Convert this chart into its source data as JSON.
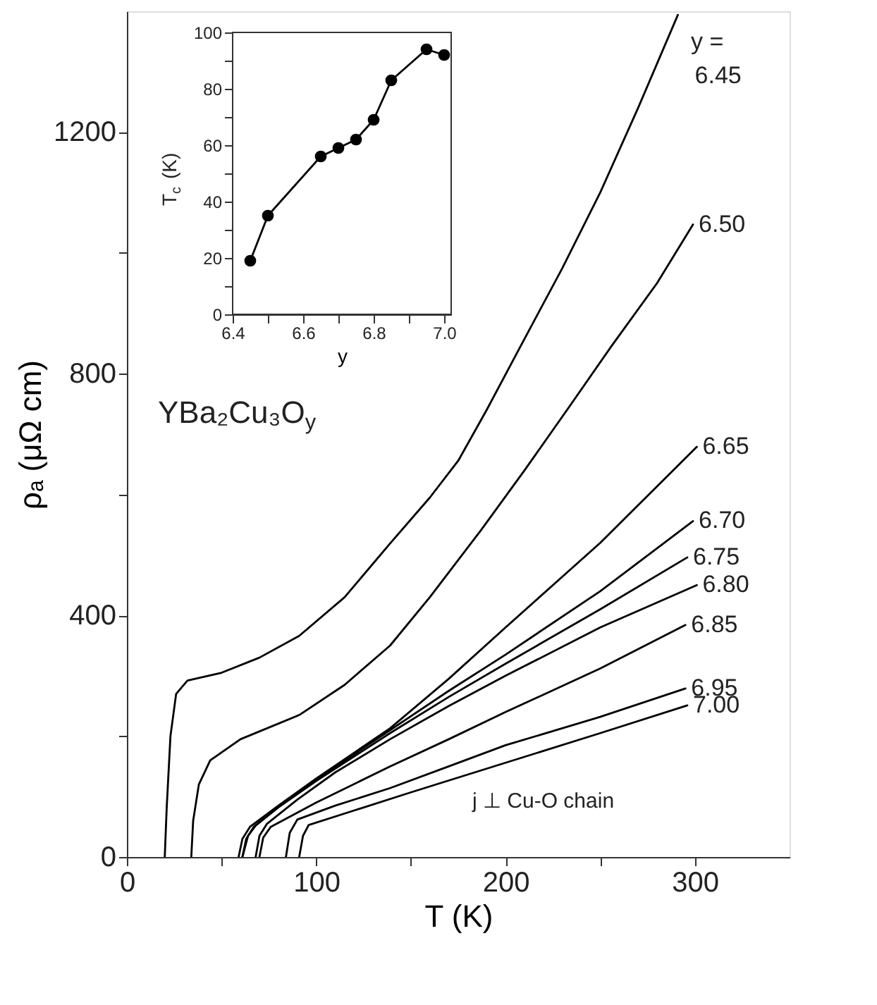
{
  "chart_data": [
    {
      "type": "line",
      "xlabel": "T (K)",
      "ylabel": "ρₐ (μΩ cm)",
      "xlim": [
        0,
        350
      ],
      "ylim": [
        0,
        1400
      ],
      "xticks": [
        0,
        {
          "value": 50,
          "label": null
        },
        100,
        {
          "value": 150,
          "label": null
        },
        200,
        {
          "value": 250,
          "label": null
        },
        300
      ],
      "yticks": [
        0,
        {
          "value": 200,
          "label": null
        },
        400,
        {
          "value": 600,
          "label": null
        },
        800,
        {
          "value": 1000,
          "label": null
        },
        1200
      ],
      "grid": false,
      "annotations": [
        "y =",
        "YBa₂Cu₃O$_{y}$",
        "j ⊥ Cu-O chain"
      ],
      "series": [
        {
          "name": "6.45",
          "color": "#000000",
          "x": [
            20,
            21,
            23,
            26,
            32,
            50,
            70,
            91,
            115,
            139,
            160,
            175,
            190,
            208,
            230,
            250,
            270,
            291
          ],
          "values": [
            0,
            80,
            200,
            270,
            292,
            305,
            330,
            366,
            430,
            519,
            595,
            656,
            740,
            846,
            975,
            1100,
            1240,
            1394
          ]
        },
        {
          "name": "6.50",
          "color": "#000000",
          "x": [
            34,
            35,
            38,
            44,
            60,
            91,
            115,
            139,
            160,
            187,
            210,
            234,
            256,
            280,
            299
          ],
          "values": [
            0,
            60,
            120,
            160,
            195,
            235,
            285,
            350,
            430,
            541,
            640,
            747,
            846,
            950,
            1047
          ]
        },
        {
          "name": "6.65",
          "color": "#000000",
          "x": [
            59,
            61,
            65,
            80,
            100,
            139,
            170,
            200,
            250,
            301
          ],
          "values": [
            0,
            30,
            50,
            85,
            130,
            213,
            295,
            380,
            520,
            679
          ]
        },
        {
          "name": "6.70",
          "color": "#000000",
          "x": [
            61,
            63,
            67,
            80,
            100,
            139,
            170,
            200,
            250,
            299
          ],
          "values": [
            0,
            30,
            50,
            83,
            128,
            210,
            275,
            335,
            440,
            556
          ]
        },
        {
          "name": "6.75",
          "color": "#000000",
          "x": [
            61,
            64,
            68,
            80,
            100,
            139,
            170,
            200,
            250,
            296
          ],
          "values": [
            0,
            35,
            52,
            82,
            126,
            205,
            265,
            320,
            410,
            496
          ]
        },
        {
          "name": "6.80",
          "color": "#000000",
          "x": [
            68,
            70,
            74,
            90,
            110,
            139,
            170,
            200,
            250,
            301
          ],
          "values": [
            0,
            35,
            55,
            95,
            140,
            195,
            250,
            300,
            380,
            450
          ]
        },
        {
          "name": "6.85",
          "color": "#000000",
          "x": [
            70,
            72,
            76,
            100,
            139,
            170,
            200,
            250,
            295
          ],
          "values": [
            0,
            32,
            50,
            90,
            150,
            195,
            240,
            312,
            384
          ]
        },
        {
          "name": "6.95",
          "color": "#000000",
          "x": [
            84,
            86,
            90,
            110,
            139,
            170,
            200,
            250,
            295
          ],
          "values": [
            0,
            40,
            62,
            85,
            114,
            150,
            185,
            232,
            279
          ]
        },
        {
          "name": "7.00",
          "color": "#000000",
          "x": [
            91,
            93,
            96,
            120,
            150,
            200,
            250,
            296
          ],
          "values": [
            0,
            35,
            53,
            77,
            107,
            156,
            205,
            251
          ]
        }
      ]
    },
    {
      "type": "line",
      "xlabel": "y",
      "ylabel": "T$_{c}$ (K)",
      "marker": "circle",
      "xlim": [
        6.4,
        7.02
      ],
      "ylim": [
        0,
        100
      ],
      "xticks": [
        6.4,
        {
          "value": 6.5,
          "label": null
        },
        6.6,
        {
          "value": 6.7,
          "label": null
        },
        6.8,
        {
          "value": 6.9,
          "label": null
        },
        {
          "value": 7,
          "label": "7.0"
        }
      ],
      "yticks": [
        0,
        {
          "value": 10,
          "label": null
        },
        20,
        {
          "value": 30,
          "label": null
        },
        40,
        {
          "value": 50,
          "label": null
        },
        60,
        {
          "value": 70,
          "label": null
        },
        80,
        {
          "value": 90,
          "label": null
        },
        100
      ],
      "x": [
        6.45,
        6.5,
        6.65,
        6.7,
        6.75,
        6.8,
        6.85,
        6.95,
        7.0
      ],
      "series": [
        {
          "color": "#000000",
          "values": [
            19,
            35,
            56,
            59,
            62,
            69,
            83,
            94,
            92
          ]
        }
      ]
    }
  ]
}
